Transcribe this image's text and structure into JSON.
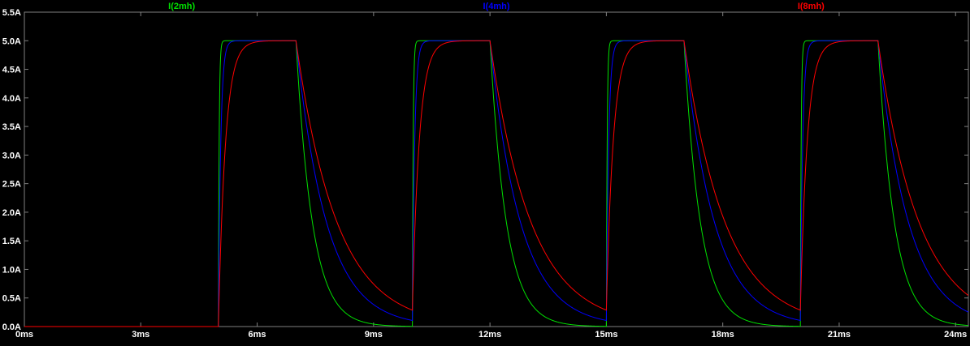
{
  "window": {
    "background": "#000000"
  },
  "chart_data": {
    "type": "line",
    "title": "",
    "x_unit": "ms",
    "y_unit": "A",
    "x_range_ms": [
      0,
      24.33
    ],
    "y_range_A": [
      0,
      5.5
    ],
    "x_ticks": {
      "values_ms": [
        0,
        3,
        6,
        9,
        12,
        15,
        18,
        21,
        24
      ],
      "labels": [
        "0ms",
        "3ms",
        "6ms",
        "9ms",
        "12ms",
        "15ms",
        "18ms",
        "21ms",
        "24ms"
      ]
    },
    "y_ticks": {
      "values_A": [
        0,
        0.5,
        1.0,
        1.5,
        2.0,
        2.5,
        3.0,
        3.5,
        4.0,
        4.5,
        5.0,
        5.5
      ],
      "labels": [
        "0.0A",
        "0.5A",
        "1.0A",
        "1.5A",
        "2.0A",
        "2.5A",
        "3.0A",
        "3.5A",
        "4.0A",
        "4.5A",
        "5.0A",
        "5.5A"
      ]
    },
    "grid": false,
    "legend_position": "top",
    "axis_color": "#808080",
    "label_color": "#ffffff",
    "background": "#000000",
    "pulse": {
      "first_rise_ms": 5,
      "period_ms": 5,
      "on_duration_ms": 2,
      "amplitude_A": 5,
      "num_pulses": 4
    },
    "series": [
      {
        "name": "I(2mh)",
        "color": "#00e000",
        "rise_tau_ms": 0.02,
        "fall_tau_ms": 0.42
      },
      {
        "name": "I(4mh)",
        "color": "#0000ff",
        "rise_tau_ms": 0.06,
        "fall_tau_ms": 0.78
      },
      {
        "name": "I(8mh)",
        "color": "#ff0000",
        "rise_tau_ms": 0.18,
        "fall_tau_ms": 1.05
      }
    ]
  }
}
